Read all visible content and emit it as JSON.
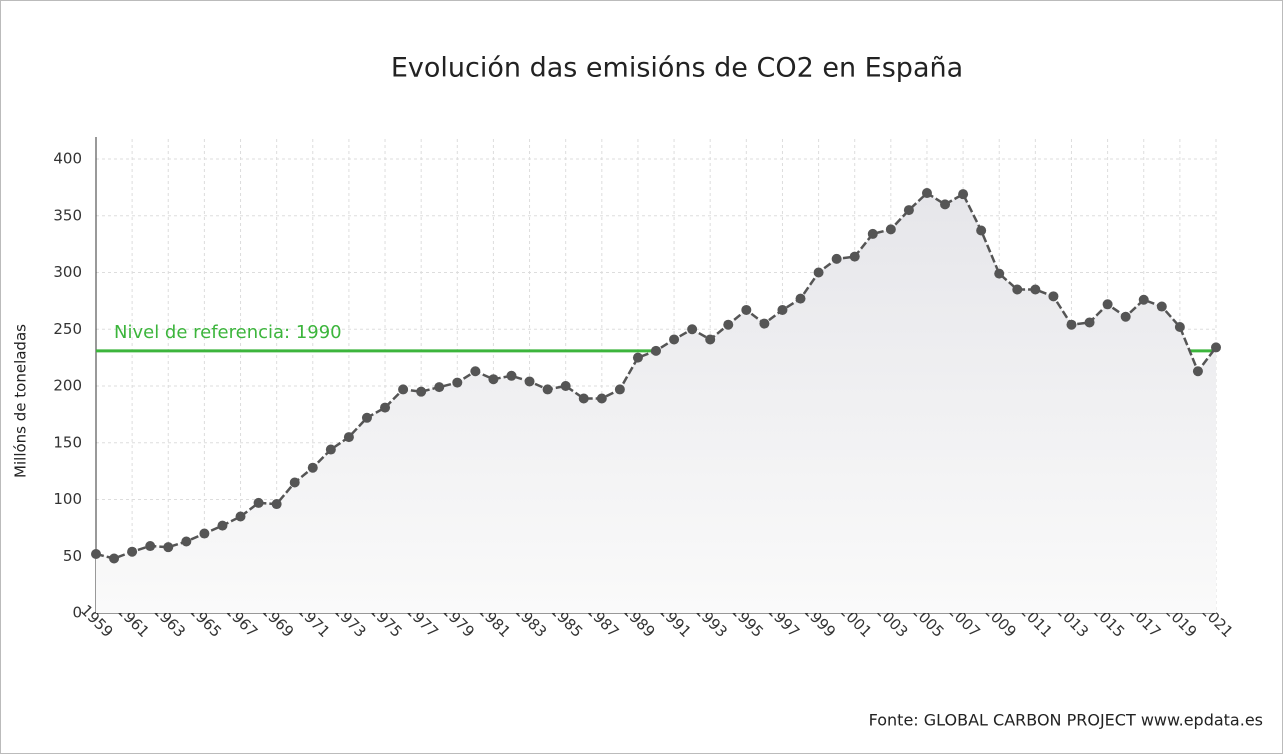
{
  "chart_data": {
    "type": "line",
    "title": "Evolución das emisións de CO2 en España",
    "y_label": "Millóns de toneladas",
    "source": "Fonte: GLOBAL CARBON PROJECT www.epdata.es",
    "x": [
      1959,
      1960,
      1961,
      1962,
      1963,
      1964,
      1965,
      1966,
      1967,
      1968,
      1969,
      1970,
      1971,
      1972,
      1973,
      1974,
      1975,
      1976,
      1977,
      1978,
      1979,
      1980,
      1981,
      1982,
      1983,
      1984,
      1985,
      1986,
      1987,
      1988,
      1989,
      1990,
      1991,
      1992,
      1993,
      1994,
      1995,
      1996,
      1997,
      1998,
      1999,
      2000,
      2001,
      2002,
      2003,
      2004,
      2005,
      2006,
      2007,
      2008,
      2009,
      2010,
      2011,
      2012,
      2013,
      2014,
      2015,
      2016,
      2017,
      2018,
      2019,
      2020,
      2021
    ],
    "series": [
      {
        "name": "Emisións de CO2",
        "color": "#555555",
        "values": [
          52,
          48,
          54,
          59,
          58,
          63,
          70,
          77,
          85,
          97,
          96,
          115,
          128,
          144,
          155,
          172,
          181,
          197,
          195,
          199,
          203,
          213,
          206,
          209,
          204,
          197,
          200,
          189,
          189,
          197,
          225,
          231,
          241,
          250,
          241,
          254,
          267,
          255,
          267,
          277,
          300,
          312,
          314,
          334,
          338,
          355,
          370,
          360,
          369,
          337,
          299,
          285,
          285,
          279,
          254,
          256,
          272,
          261,
          276,
          270,
          252,
          213,
          234
        ]
      }
    ],
    "xlim": [
      1959,
      2021
    ],
    "xticks": [
      1959,
      1961,
      1963,
      1965,
      1967,
      1969,
      1971,
      1973,
      1975,
      1977,
      1979,
      1981,
      1983,
      1985,
      1987,
      1989,
      1991,
      1993,
      1995,
      1997,
      1999,
      2001,
      2003,
      2005,
      2007,
      2009,
      2011,
      2013,
      2015,
      2017,
      2019,
      2021
    ],
    "ylim": [
      0,
      400
    ],
    "yticks": [
      0,
      50,
      100,
      150,
      200,
      250,
      300,
      350,
      400
    ],
    "grid": true,
    "reference_line": {
      "value": 231,
      "label": "Nivel de referencia: 1990",
      "color": "#3cb53c"
    }
  }
}
